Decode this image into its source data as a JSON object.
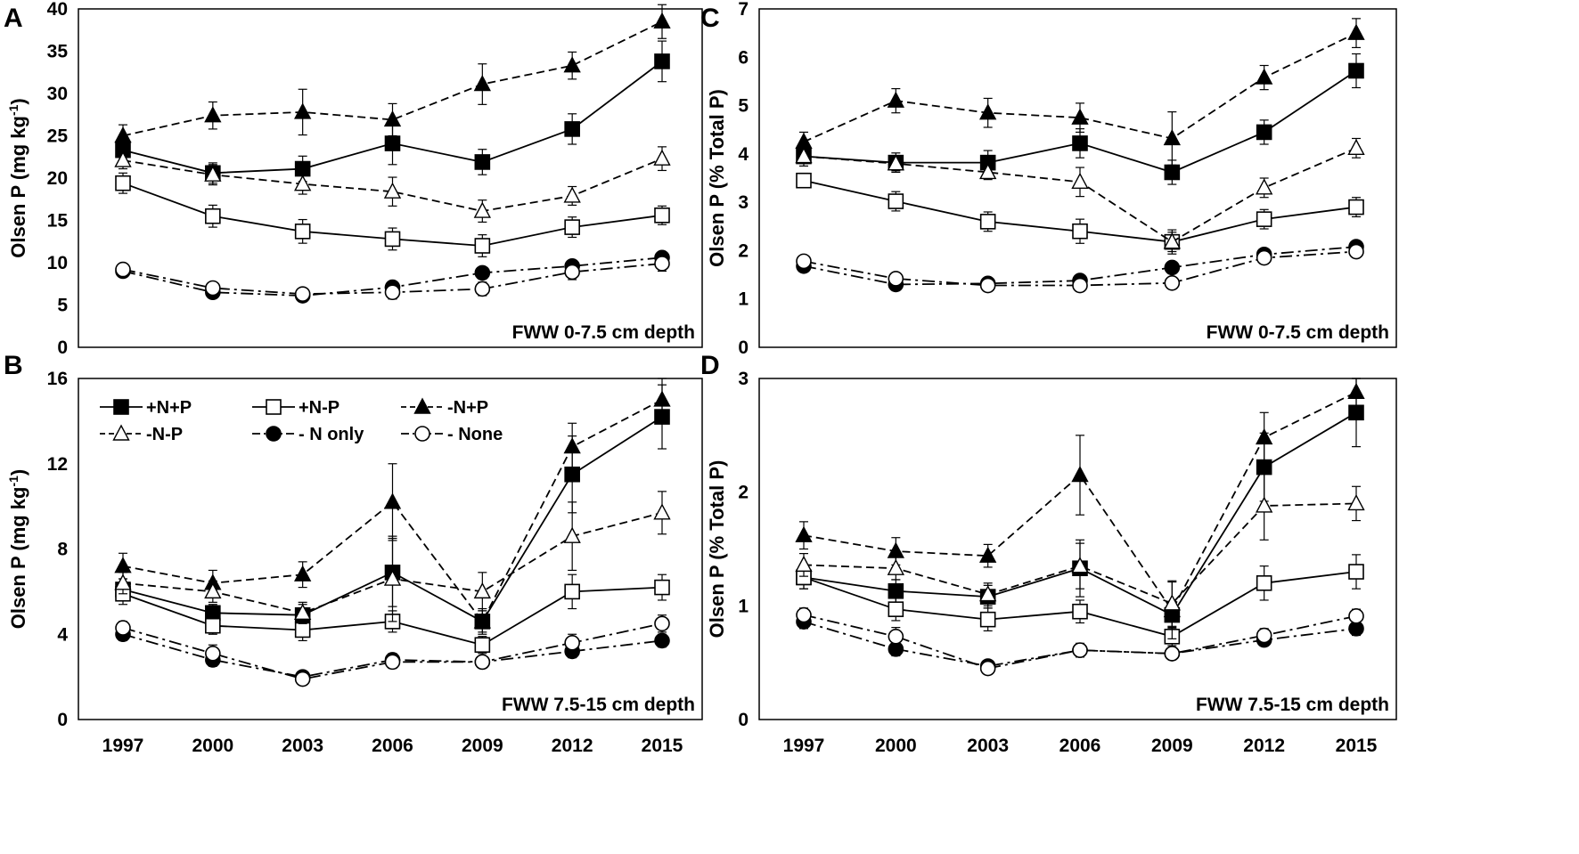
{
  "chart_data": [
    {
      "panel": "A",
      "type": "line",
      "ylabel_main": "Olsen P (mg kg",
      "ylabel_sup": "-1",
      "ylabel_end": ")",
      "annotation": "FWW 0-7.5 cm depth",
      "ylim": [
        0,
        40
      ],
      "yticks": [
        0,
        5,
        10,
        15,
        20,
        25,
        30,
        35,
        40
      ],
      "x": [
        1997,
        2000,
        2003,
        2006,
        2009,
        2012,
        2015
      ],
      "show_xticks": false,
      "series": [
        {
          "name": "+N+P",
          "marker": "square",
          "fill": "#000000",
          "dash": "solid",
          "values": [
            23.3,
            20.6,
            21.1,
            24.1,
            21.9,
            25.8,
            33.8
          ],
          "errors": [
            1.2,
            1.2,
            1.5,
            2.5,
            1.5,
            1.8,
            2.4
          ]
        },
        {
          "name": "+N-P",
          "marker": "square",
          "fill": "#ffffff",
          "dash": "solid",
          "values": [
            19.4,
            15.5,
            13.7,
            12.8,
            12.0,
            14.2,
            15.6
          ],
          "errors": [
            1.2,
            1.3,
            1.4,
            1.3,
            1.3,
            1.2,
            1.1
          ]
        },
        {
          "name": "-N+P",
          "marker": "triangle",
          "fill": "#000000",
          "dash": "dashed",
          "values": [
            25.0,
            27.4,
            27.8,
            26.9,
            31.1,
            33.3,
            38.5
          ],
          "errors": [
            1.3,
            1.6,
            2.7,
            1.9,
            2.4,
            1.6,
            2.0
          ]
        },
        {
          "name": "-N-P",
          "marker": "triangle",
          "fill": "#ffffff",
          "dash": "dashed",
          "values": [
            22.1,
            20.4,
            19.3,
            18.4,
            16.1,
            17.9,
            22.3
          ],
          "errors": [
            1.0,
            1.2,
            1.2,
            1.7,
            1.3,
            1.1,
            1.4
          ]
        },
        {
          "name": "-N only",
          "marker": "circle",
          "fill": "#000000",
          "dash": "dashdot",
          "values": [
            9.0,
            6.5,
            6.1,
            7.1,
            8.8,
            9.6,
            10.6
          ],
          "errors": [
            0.6,
            0.6,
            0.5,
            0.6,
            0.6,
            0.7,
            0.7
          ]
        },
        {
          "name": "-None",
          "marker": "circle",
          "fill": "#ffffff",
          "dash": "dashdot",
          "values": [
            9.2,
            7.0,
            6.3,
            6.5,
            6.9,
            8.9,
            9.9
          ],
          "errors": [
            0.7,
            0.7,
            0.6,
            0.8,
            0.8,
            0.9,
            0.9
          ]
        }
      ]
    },
    {
      "panel": "B",
      "type": "line",
      "ylabel_main": "Olsen P (mg kg",
      "ylabel_sup": "-1",
      "ylabel_end": ")",
      "annotation": "FWW 7.5-15 cm depth",
      "ylim": [
        0,
        16
      ],
      "yticks": [
        0,
        4,
        8,
        12,
        16
      ],
      "x": [
        1997,
        2000,
        2003,
        2006,
        2009,
        2012,
        2015
      ],
      "show_xticks": true,
      "series": [
        {
          "name": "+N+P",
          "marker": "square",
          "fill": "#000000",
          "dash": "solid",
          "values": [
            6.1,
            5.0,
            4.9,
            6.9,
            4.6,
            11.5,
            14.2
          ],
          "errors": [
            0.5,
            0.4,
            0.5,
            1.6,
            0.5,
            1.8,
            1.5
          ]
        },
        {
          "name": "+N-P",
          "marker": "square",
          "fill": "#ffffff",
          "dash": "solid",
          "values": [
            5.9,
            4.4,
            4.2,
            4.6,
            3.5,
            6.0,
            6.2
          ],
          "errors": [
            0.5,
            0.4,
            0.5,
            0.5,
            0.4,
            0.8,
            0.6
          ]
        },
        {
          "name": "-N+P",
          "marker": "triangle",
          "fill": "#000000",
          "dash": "dashed",
          "values": [
            7.2,
            6.4,
            6.8,
            10.2,
            4.6,
            12.8,
            15.0
          ],
          "errors": [
            0.6,
            0.6,
            0.6,
            1.8,
            0.6,
            1.1,
            1.0
          ]
        },
        {
          "name": "-N-P",
          "marker": "triangle",
          "fill": "#ffffff",
          "dash": "dashed",
          "values": [
            6.4,
            6.0,
            5.0,
            6.6,
            6.0,
            8.6,
            9.7
          ],
          "errors": [
            0.5,
            0.5,
            0.5,
            2.0,
            0.9,
            1.6,
            1.0
          ]
        },
        {
          "name": "-N only",
          "marker": "circle",
          "fill": "#000000",
          "dash": "dashdot",
          "values": [
            4.0,
            2.8,
            2.0,
            2.8,
            2.7,
            3.2,
            3.7
          ],
          "errors": [
            0.3,
            0.3,
            0.2,
            0.3,
            0.2,
            0.3,
            0.3
          ]
        },
        {
          "name": "-None",
          "marker": "circle",
          "fill": "#ffffff",
          "dash": "dashdot",
          "values": [
            4.3,
            3.1,
            1.9,
            2.7,
            2.7,
            3.6,
            4.5
          ],
          "errors": [
            0.3,
            0.4,
            0.2,
            0.3,
            0.2,
            0.4,
            0.4
          ]
        }
      ]
    },
    {
      "panel": "C",
      "type": "line",
      "ylabel_main": "Olsen P (% Total P)",
      "ylabel_sup": "",
      "ylabel_end": "",
      "annotation": "FWW 0-7.5 cm depth",
      "ylim": [
        0,
        7
      ],
      "yticks": [
        0,
        1,
        2,
        3,
        4,
        5,
        6,
        7
      ],
      "x": [
        1997,
        2000,
        2003,
        2006,
        2009,
        2012,
        2015
      ],
      "show_xticks": false,
      "series": [
        {
          "name": "+N+P",
          "marker": "square",
          "fill": "#000000",
          "dash": "solid",
          "values": [
            3.95,
            3.82,
            3.82,
            4.22,
            3.62,
            4.45,
            5.72
          ],
          "errors": [
            0.2,
            0.2,
            0.25,
            0.3,
            0.25,
            0.25,
            0.35
          ]
        },
        {
          "name": "+N-P",
          "marker": "square",
          "fill": "#ffffff",
          "dash": "solid",
          "values": [
            3.45,
            3.02,
            2.6,
            2.4,
            2.18,
            2.65,
            2.9
          ],
          "errors": [
            0.15,
            0.2,
            0.2,
            0.25,
            0.2,
            0.2,
            0.2
          ]
        },
        {
          "name": "-N+P",
          "marker": "triangle",
          "fill": "#000000",
          "dash": "dashed",
          "values": [
            4.25,
            5.1,
            4.85,
            4.75,
            4.32,
            5.58,
            6.5
          ],
          "errors": [
            0.2,
            0.25,
            0.3,
            0.3,
            0.55,
            0.25,
            0.3
          ]
        },
        {
          "name": "-N-P",
          "marker": "triangle",
          "fill": "#ffffff",
          "dash": "dashed",
          "values": [
            3.95,
            3.8,
            3.62,
            3.42,
            2.18,
            3.3,
            4.12
          ],
          "errors": [
            0.15,
            0.15,
            0.15,
            0.3,
            0.25,
            0.2,
            0.2
          ]
        },
        {
          "name": "-N only",
          "marker": "circle",
          "fill": "#000000",
          "dash": "dashdot",
          "values": [
            1.68,
            1.3,
            1.32,
            1.38,
            1.65,
            1.92,
            2.08
          ],
          "errors": [
            0.1,
            0.1,
            0.08,
            0.12,
            0.12,
            0.12,
            0.12
          ]
        },
        {
          "name": "-None",
          "marker": "circle",
          "fill": "#ffffff",
          "dash": "dashdot",
          "values": [
            1.78,
            1.42,
            1.28,
            1.28,
            1.33,
            1.85,
            1.98
          ],
          "errors": [
            0.1,
            0.12,
            0.1,
            0.12,
            0.1,
            0.12,
            0.12
          ]
        }
      ]
    },
    {
      "panel": "D",
      "type": "line",
      "ylabel_main": "Olsen P (% Total P)",
      "ylabel_sup": "",
      "ylabel_end": "",
      "annotation": "FWW 7.5-15 cm depth",
      "ylim": [
        0,
        3
      ],
      "yticks": [
        0,
        1,
        2,
        3
      ],
      "x": [
        1997,
        2000,
        2003,
        2006,
        2009,
        2012,
        2015
      ],
      "show_xticks": true,
      "series": [
        {
          "name": "+N+P",
          "marker": "square",
          "fill": "#000000",
          "dash": "solid",
          "values": [
            1.25,
            1.13,
            1.08,
            1.33,
            0.92,
            2.22,
            2.7
          ],
          "errors": [
            0.1,
            0.1,
            0.1,
            0.25,
            0.12,
            0.3,
            0.3
          ]
        },
        {
          "name": "+N-P",
          "marker": "square",
          "fill": "#ffffff",
          "dash": "solid",
          "values": [
            1.25,
            0.97,
            0.88,
            0.95,
            0.73,
            1.2,
            1.3
          ],
          "errors": [
            0.1,
            0.1,
            0.1,
            0.1,
            0.08,
            0.15,
            0.15
          ]
        },
        {
          "name": "-N+P",
          "marker": "triangle",
          "fill": "#000000",
          "dash": "dashed",
          "values": [
            1.62,
            1.48,
            1.44,
            2.15,
            0.96,
            2.48,
            2.88
          ],
          "errors": [
            0.12,
            0.12,
            0.1,
            0.35,
            0.25,
            0.22,
            0.12
          ]
        },
        {
          "name": "-N-P",
          "marker": "triangle",
          "fill": "#ffffff",
          "dash": "dashed",
          "values": [
            1.36,
            1.33,
            1.1,
            1.35,
            1.02,
            1.88,
            1.9
          ],
          "errors": [
            0.1,
            0.1,
            0.1,
            0.2,
            0.2,
            0.3,
            0.15
          ]
        },
        {
          "name": "-N only",
          "marker": "circle",
          "fill": "#000000",
          "dash": "dashdot",
          "values": [
            0.86,
            0.62,
            0.47,
            0.61,
            0.58,
            0.7,
            0.8
          ],
          "errors": [
            0.06,
            0.06,
            0.04,
            0.06,
            0.04,
            0.05,
            0.06
          ]
        },
        {
          "name": "-None",
          "marker": "circle",
          "fill": "#ffffff",
          "dash": "dashdot",
          "values": [
            0.92,
            0.73,
            0.45,
            0.61,
            0.58,
            0.74,
            0.91
          ],
          "errors": [
            0.06,
            0.08,
            0.04,
            0.06,
            0.04,
            0.06,
            0.06
          ]
        }
      ]
    }
  ],
  "legend": {
    "items": [
      "+N+P",
      "+N-P",
      "-N+P",
      "-N-P",
      "- N only",
      "- None"
    ]
  }
}
